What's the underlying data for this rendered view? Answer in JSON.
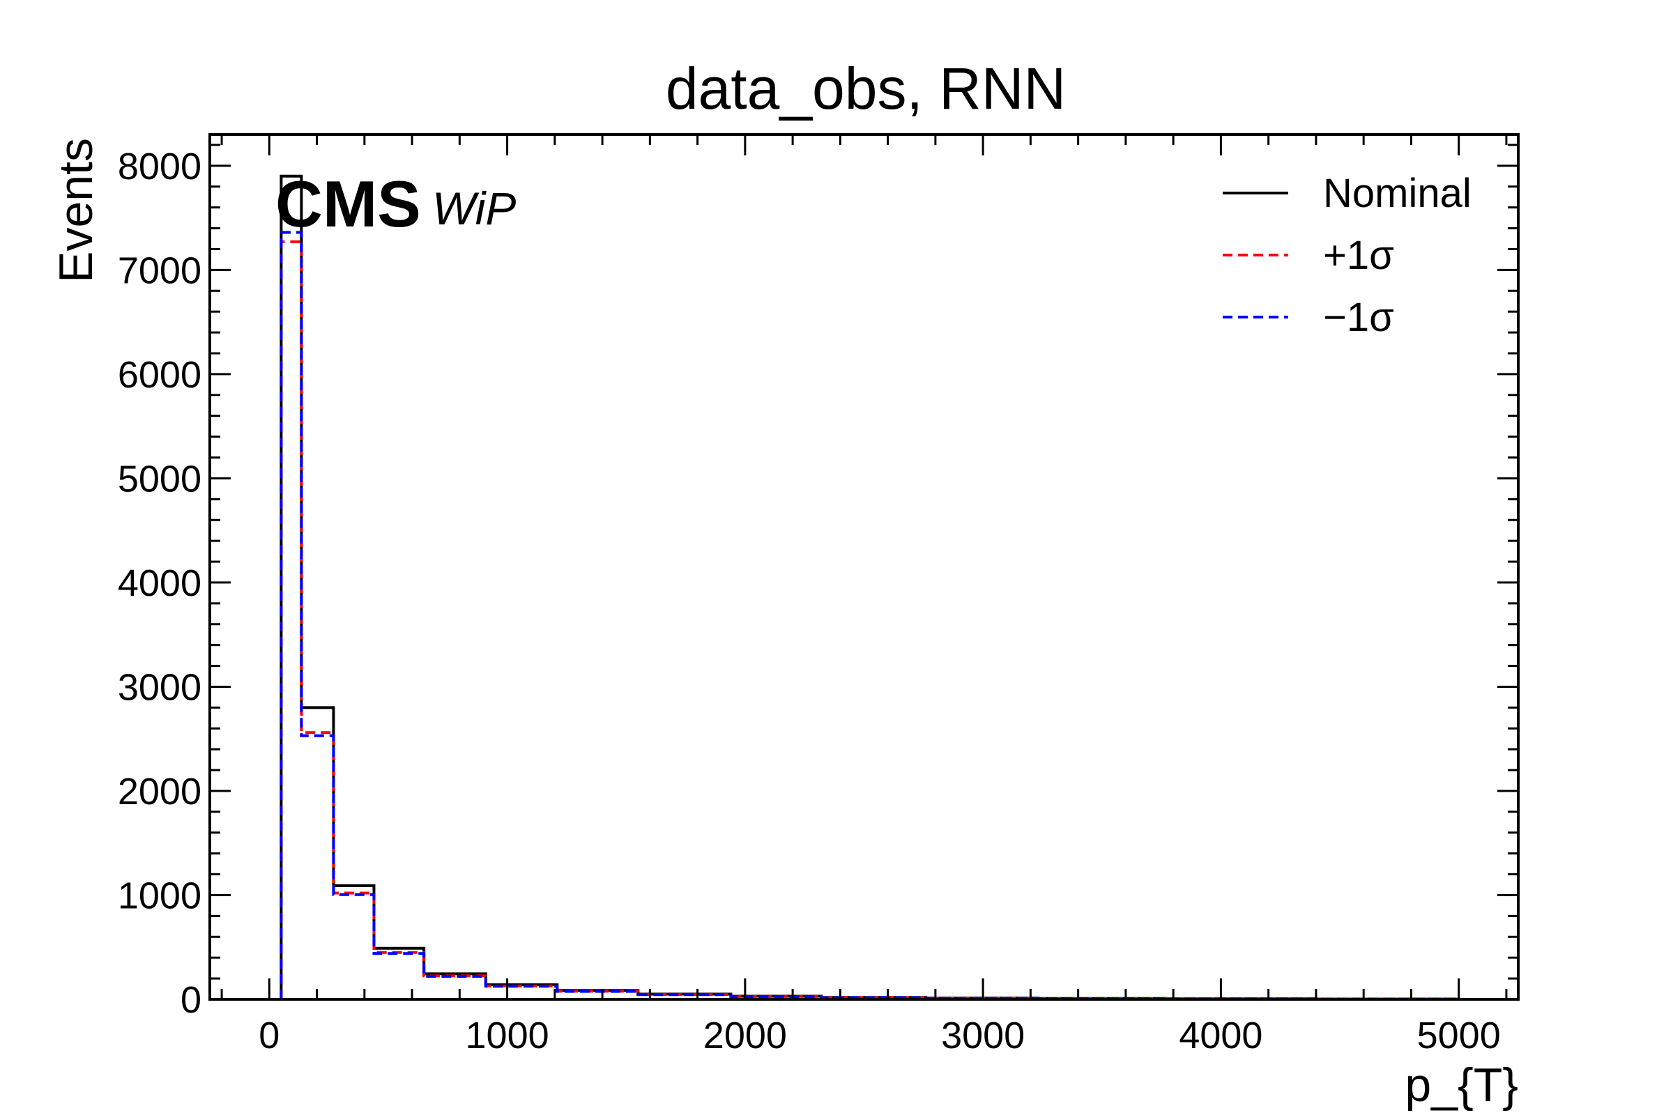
{
  "chart_data": {
    "type": "histogram-step",
    "title": "data_obs, RNN",
    "xlabel": "p_{T}",
    "ylabel": "Events",
    "experiment_label": "CMS",
    "status_label": "WiP",
    "xlim": [
      -250,
      5250
    ],
    "ylim": [
      0,
      8300
    ],
    "x_ticks": [
      0,
      1000,
      2000,
      3000,
      4000,
      5000
    ],
    "y_ticks": [
      0,
      1000,
      2000,
      3000,
      4000,
      5000,
      6000,
      7000,
      8000
    ],
    "bin_edges": [
      50,
      135,
      270,
      440,
      650,
      910,
      1210,
      1550,
      1940,
      2320,
      2760,
      3230,
      3770,
      4400,
      5000
    ],
    "legend_position": "top-right",
    "grid": false,
    "series": [
      {
        "name": "Nominal",
        "color": "#000000",
        "style": "solid",
        "values": [
          7900,
          2800,
          1090,
          490,
          245,
          140,
          85,
          50,
          30,
          18,
          12,
          8,
          5,
          3
        ]
      },
      {
        "name": "+1σ",
        "color": "#ff0000",
        "style": "dashed",
        "values": [
          7270,
          2560,
          1020,
          450,
          225,
          128,
          78,
          46,
          28,
          17,
          11,
          7,
          4,
          3
        ]
      },
      {
        "name": "−1σ",
        "color": "#0000ff",
        "style": "dashed",
        "values": [
          7360,
          2530,
          1005,
          440,
          220,
          125,
          76,
          45,
          27,
          16,
          10,
          7,
          4,
          3
        ]
      }
    ]
  }
}
